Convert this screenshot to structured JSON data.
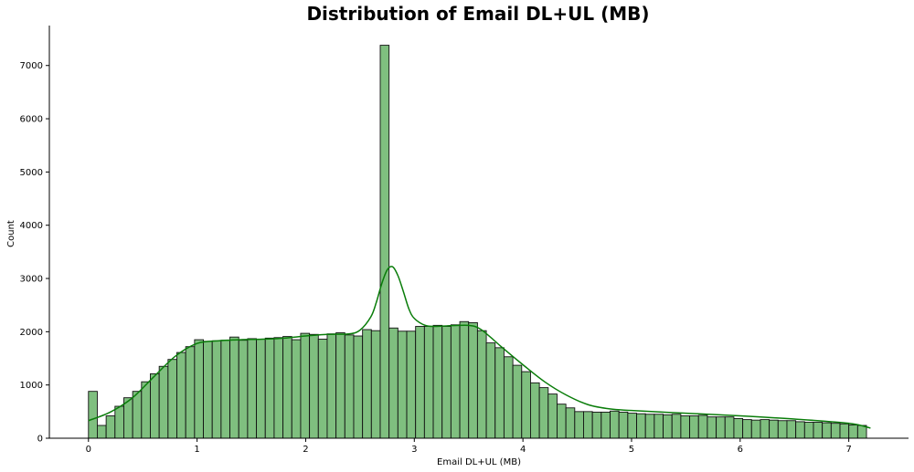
{
  "chart_data": {
    "type": "bar",
    "title": "Distribution of Email DL+UL (MB)",
    "xlabel": "Email DL+UL (MB)",
    "ylabel": "Count",
    "xlim": [
      -0.36,
      7.55
    ],
    "ylim": [
      0,
      7750
    ],
    "xticks": [
      0,
      1,
      2,
      3,
      4,
      5,
      6,
      7
    ],
    "yticks": [
      0,
      1000,
      2000,
      3000,
      4000,
      5000,
      6000,
      7000
    ],
    "bin_start": 0,
    "bin_width": 0.0814,
    "counts": [
      880,
      240,
      420,
      600,
      760,
      880,
      1060,
      1210,
      1350,
      1480,
      1610,
      1720,
      1850,
      1820,
      1830,
      1840,
      1900,
      1840,
      1870,
      1860,
      1880,
      1890,
      1910,
      1850,
      1970,
      1950,
      1860,
      1960,
      1980,
      1940,
      1920,
      2040,
      2020,
      7380,
      2070,
      2010,
      2010,
      2100,
      2100,
      2120,
      2100,
      2130,
      2190,
      2170,
      2020,
      1790,
      1700,
      1530,
      1370,
      1250,
      1040,
      950,
      830,
      640,
      570,
      500,
      500,
      490,
      490,
      510,
      490,
      470,
      460,
      450,
      450,
      440,
      450,
      420,
      420,
      430,
      400,
      400,
      400,
      370,
      350,
      340,
      350,
      340,
      330,
      330,
      310,
      300,
      300,
      290,
      280,
      270,
      250,
      240
    ],
    "kde": {
      "x": [
        0,
        0.2,
        0.4,
        0.6,
        0.8,
        1.0,
        1.2,
        1.4,
        1.6,
        1.8,
        2.0,
        2.2,
        2.4,
        2.5,
        2.6,
        2.65,
        2.7,
        2.75,
        2.8,
        2.85,
        2.9,
        2.95,
        3.0,
        3.1,
        3.2,
        3.3,
        3.5,
        3.6,
        3.7,
        3.8,
        4.0,
        4.2,
        4.4,
        4.6,
        4.8,
        5.0,
        5.5,
        6.0,
        6.5,
        7.0,
        7.2
      ],
      "y": [
        330,
        490,
        750,
        1150,
        1540,
        1780,
        1830,
        1850,
        1860,
        1880,
        1920,
        1950,
        1960,
        2030,
        2280,
        2550,
        2900,
        3160,
        3220,
        3050,
        2750,
        2430,
        2250,
        2120,
        2100,
        2110,
        2120,
        2060,
        1900,
        1720,
        1380,
        1060,
        810,
        630,
        550,
        520,
        470,
        420,
        360,
        280,
        190
      ]
    }
  }
}
